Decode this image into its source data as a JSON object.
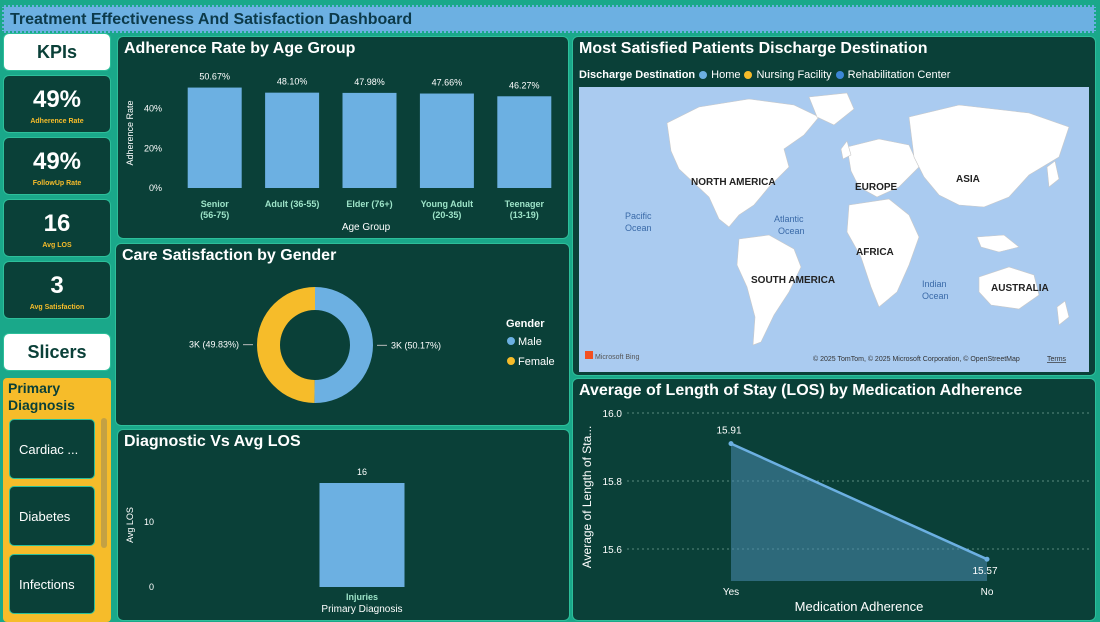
{
  "page": {
    "title": "Treatment Effectiveness And Satisfaction Dashboard"
  },
  "kpis": {
    "header": "KPIs",
    "cards": [
      {
        "value": "49%",
        "label": "Adherence Rate"
      },
      {
        "value": "49%",
        "label": "FollowUp Rate"
      },
      {
        "value": "16",
        "label": "Avg LOS"
      },
      {
        "value": "3",
        "label": "Avg Satisfaction"
      }
    ]
  },
  "slicers": {
    "header": "Slicers",
    "title": "Primary Diagnosis",
    "items": [
      "Cardiac ...",
      "Diabetes",
      "Infections"
    ]
  },
  "map": {
    "title": "Most Satisfied Patients Discharge Destination",
    "legend_title": "Discharge Destination",
    "legend": [
      {
        "name": "Home",
        "color": "#6cb0e2"
      },
      {
        "name": "Nursing Facility",
        "color": "#f6bc2a"
      },
      {
        "name": "Rehabilitation Center",
        "color": "#3c86d6"
      }
    ],
    "labels": {
      "north_america": "NORTH AMERICA",
      "europe": "EUROPE",
      "asia": "ASIA",
      "africa": "AFRICA",
      "south_america": "SOUTH AMERICA",
      "australia": "AUSTRALIA",
      "pacific1": "Pacific",
      "pacific2": "Ocean",
      "atlantic1": "Atlantic",
      "atlantic2": "Ocean",
      "indian1": "Indian",
      "indian2": "Ocean"
    },
    "attribution": "© 2025 TomTom, © 2025 Microsoft Corporation, © OpenStreetMap",
    "terms": "Terms",
    "brand": "Microsoft Bing"
  },
  "chart_data": [
    {
      "type": "bar",
      "title": "Adherence Rate by Age Group",
      "xlabel": "Age Group",
      "ylabel": "Adherence Rate",
      "categories": [
        [
          "Senior",
          "(56-75)"
        ],
        [
          "Adult (36-55)"
        ],
        [
          "Elder (76+)"
        ],
        [
          "Young Adult",
          "(20-35)"
        ],
        [
          "Teenager",
          "(13-19)"
        ]
      ],
      "values": [
        50.67,
        48.1,
        47.98,
        47.66,
        46.27
      ],
      "value_labels": [
        "50.67%",
        "48.10%",
        "47.98%",
        "47.66%",
        "46.27%"
      ],
      "yticks": [
        "0%",
        "20%",
        "40%"
      ],
      "ylim": [
        0,
        56
      ]
    },
    {
      "type": "pie",
      "title": "Care Satisfaction by Gender",
      "legend_title": "Gender",
      "series": [
        {
          "name": "Male",
          "value": 50.17,
          "label": "3K (50.17%)",
          "color": "#6cb0e2"
        },
        {
          "name": "Female",
          "value": 49.83,
          "label": "3K (49.83%)",
          "color": "#f6bc2a"
        }
      ]
    },
    {
      "type": "bar",
      "title": "Diagnostic Vs Avg LOS",
      "xlabel": "Primary Diagnosis",
      "ylabel": "Avg LOS",
      "categories": [
        "Injuries"
      ],
      "values": [
        16
      ],
      "value_labels": [
        "16"
      ],
      "yticks": [
        "0",
        "10"
      ],
      "ylim": [
        0,
        18
      ]
    },
    {
      "type": "area",
      "title": "Average of Length of Stay (LOS) by Medication Adherence",
      "xlabel": "Medication Adherence",
      "ylabel": "Average of Length of Sta...",
      "categories": [
        "Yes",
        "No"
      ],
      "values": [
        15.91,
        15.57
      ],
      "value_labels": [
        "15.91",
        "15.57"
      ],
      "yticks": [
        "15.6",
        "15.8",
        "16.0"
      ],
      "ylim": [
        15.5,
        16.0
      ]
    }
  ]
}
